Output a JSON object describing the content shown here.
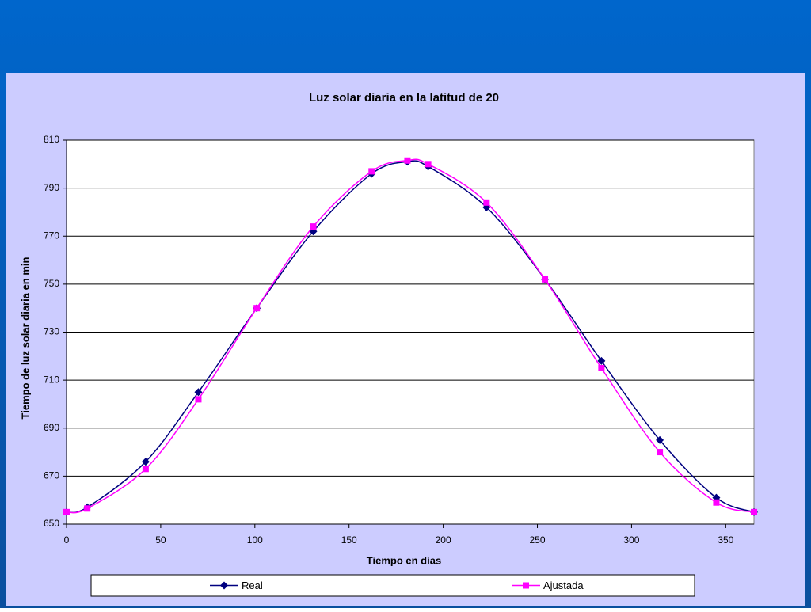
{
  "chart_data": {
    "type": "line",
    "title": "Luz solar diaria en la latitud de 20",
    "x_label": "Tiempo en días",
    "y_label": "Tiempo de luz solar diaria en min",
    "x": [
      0,
      11,
      42,
      70,
      101,
      131,
      162,
      181,
      192,
      223,
      254,
      284,
      315,
      345,
      365
    ],
    "series": [
      {
        "name": "Real",
        "color": "#000080",
        "marker": "diamond",
        "values": [
          655,
          657,
          676,
          705,
          740,
          772,
          796,
          801,
          799,
          782,
          752,
          718,
          685,
          661,
          655
        ]
      },
      {
        "name": "Ajustada",
        "color": "#ff00ff",
        "marker": "square",
        "values": [
          655,
          656.5,
          673,
          702,
          740,
          774,
          797,
          801.5,
          800,
          784,
          752,
          715,
          680,
          659,
          655
        ]
      }
    ],
    "xlim": [
      0,
      365
    ],
    "xticks": [
      0,
      50,
      100,
      150,
      200,
      250,
      300,
      350
    ],
    "ylim": [
      650,
      810
    ],
    "yticks": [
      650,
      670,
      690,
      710,
      730,
      750,
      770,
      790,
      810
    ],
    "grid": true,
    "legend": "bottom"
  }
}
